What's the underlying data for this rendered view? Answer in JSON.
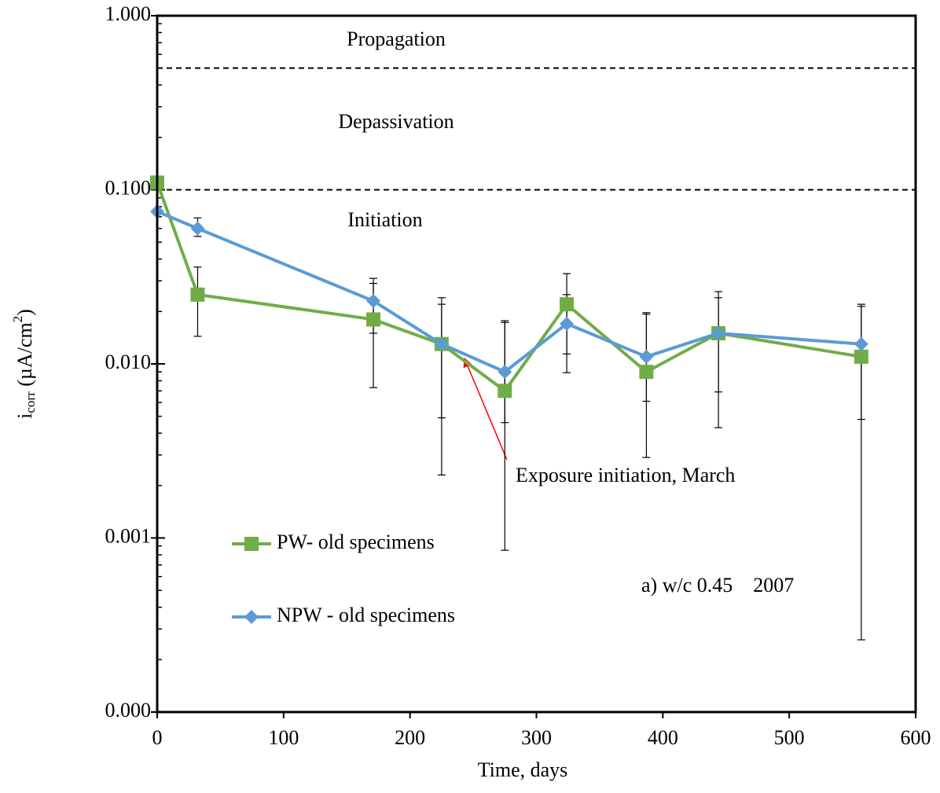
{
  "chart_data": {
    "type": "line",
    "x_label": "Time, days",
    "y_label": [
      "i",
      "corr",
      " (µA/cm",
      "2",
      ")"
    ],
    "log_y": true,
    "xlim": [
      0,
      600
    ],
    "xticks": [
      0,
      100,
      200,
      300,
      400,
      500,
      600
    ],
    "ylim": [
      0.0001,
      1
    ],
    "yticks": [
      {
        "value": 0.0001,
        "label": "0.000"
      },
      {
        "value": 0.001,
        "label": "0.001"
      },
      {
        "value": 0.01,
        "label": "0.010"
      },
      {
        "value": 0.1,
        "label": "0.100"
      },
      {
        "value": 1,
        "label": "1.000"
      }
    ],
    "reference_lines": [
      0.5,
      0.1
    ],
    "zone_labels": [
      "Propagation",
      "Depassivation",
      "Initiation"
    ],
    "annotations": [
      "Exposure initiation, March",
      "a) w/c 0.45    2007"
    ],
    "series": [
      {
        "name": "PW- old specimens",
        "color": "#70ad47",
        "marker": "square",
        "x": [
          0,
          32,
          171,
          225,
          275,
          324,
          387,
          444,
          557
        ],
        "values": [
          0.11,
          0.025,
          0.018,
          0.013,
          0.007,
          0.022,
          0.009,
          0.015,
          0.011
        ],
        "error_low": [
          null,
          0.0144,
          0.0073,
          0.0023,
          0.00085,
          0.0114,
          0.0029,
          0.0043,
          0.00026
        ],
        "error_high": [
          null,
          0.036,
          0.029,
          0.024,
          0.0177,
          0.033,
          0.0197,
          0.026,
          0.022
        ]
      },
      {
        "name": "NPW - old specimens",
        "color": "#5b9bd5",
        "marker": "diamond",
        "x": [
          0,
          32,
          171,
          225,
          275,
          324,
          387,
          444,
          557
        ],
        "values": [
          0.075,
          0.06,
          0.023,
          0.013,
          0.009,
          0.017,
          0.011,
          0.015,
          0.013
        ],
        "error_low": [
          null,
          0.054,
          0.015,
          0.0049,
          0.0046,
          0.0089,
          0.0061,
          0.0069,
          0.0048
        ],
        "error_high": [
          null,
          0.069,
          0.031,
          0.022,
          0.0173,
          0.025,
          0.0193,
          0.024,
          0.0214
        ]
      }
    ]
  }
}
